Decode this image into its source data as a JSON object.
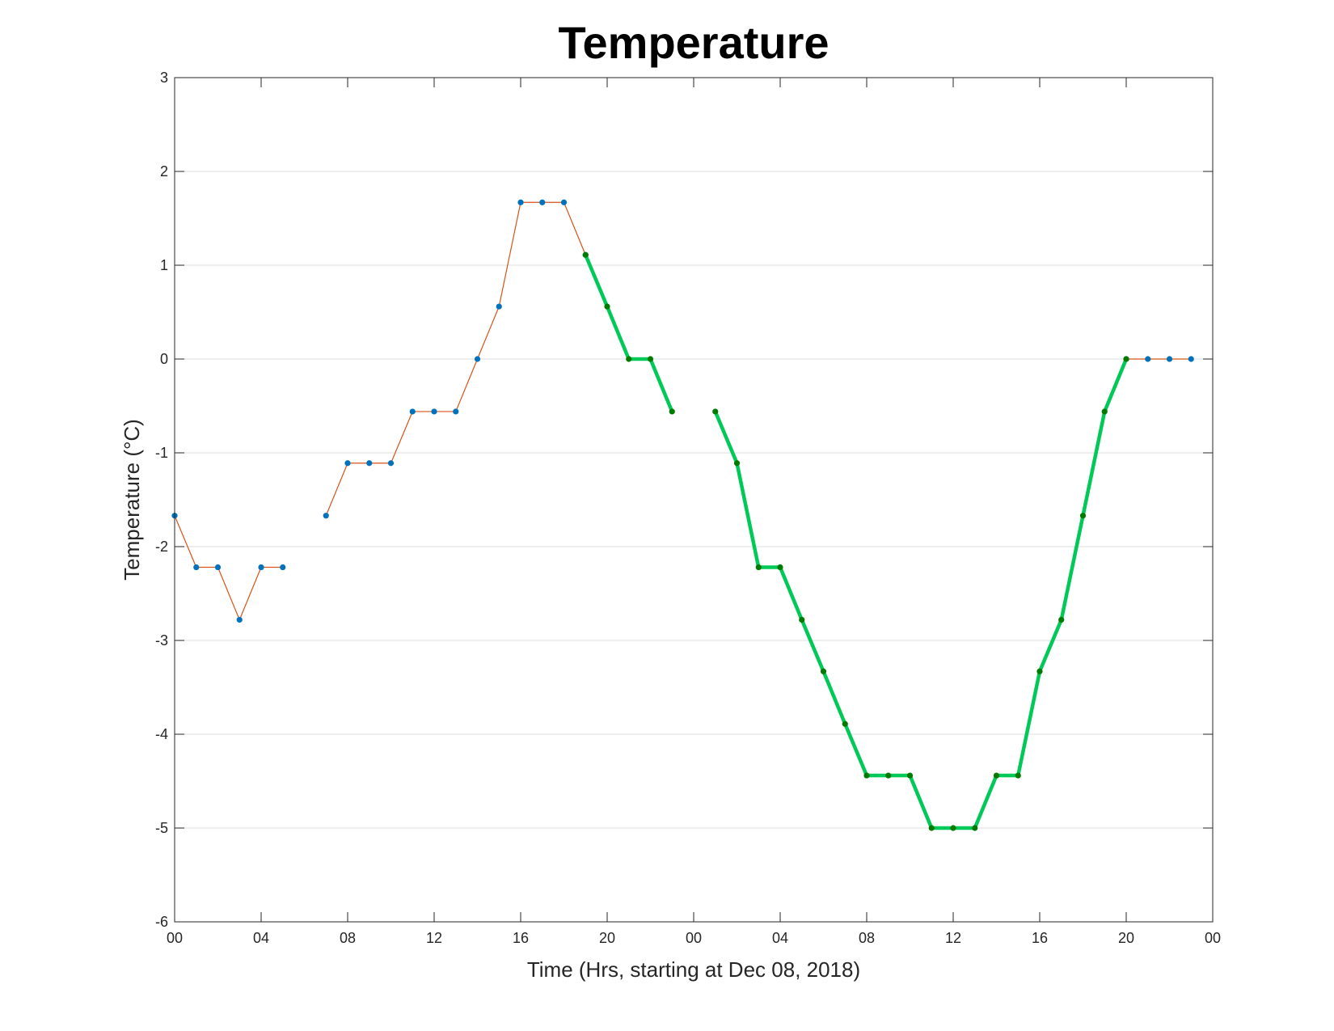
{
  "chart_data": {
    "type": "line",
    "title": "Temperature",
    "xlabel": "Time (Hrs, starting at Dec 08, 2018)",
    "ylabel": "Temperature (°C)",
    "xlim": [
      0,
      48
    ],
    "ylim": [
      -6,
      3
    ],
    "x_ticks": [
      0,
      4,
      8,
      12,
      16,
      20,
      24,
      28,
      32,
      36,
      40,
      44,
      48
    ],
    "x_tick_labels": [
      "00",
      "04",
      "08",
      "12",
      "16",
      "20",
      "00",
      "04",
      "08",
      "12",
      "16",
      "20",
      "00"
    ],
    "y_ticks": [
      -6,
      -5,
      -4,
      -3,
      -2,
      -1,
      0,
      1,
      2,
      3
    ],
    "y_tick_labels": [
      "-6",
      "-5",
      "-4",
      "-3",
      "-2",
      "-1",
      "0",
      "1",
      "2",
      "3"
    ],
    "grid": "horizontal",
    "series": [
      {
        "style": "thin",
        "line_color": "#D95319",
        "marker_color": "#0072BD",
        "points": [
          [
            0,
            -1.67
          ],
          [
            1,
            -2.22
          ],
          [
            2,
            -2.22
          ],
          [
            3,
            -2.78
          ],
          [
            4,
            -2.22
          ],
          [
            5,
            -2.22
          ],
          null,
          [
            7,
            -1.67
          ],
          [
            8,
            -1.11
          ],
          [
            9,
            -1.11
          ],
          [
            10,
            -1.11
          ],
          [
            11,
            -0.56
          ],
          [
            12,
            -0.56
          ],
          [
            13,
            -0.56
          ],
          [
            14,
            0
          ],
          [
            15,
            0.56
          ],
          [
            16,
            1.67
          ],
          [
            17,
            1.67
          ],
          [
            18,
            1.67
          ],
          [
            19,
            1.11
          ]
        ]
      },
      {
        "style": "thin",
        "line_color": "#D95319",
        "marker_color": "#0072BD",
        "points": [
          [
            44,
            0
          ],
          [
            45,
            0
          ],
          [
            46,
            0
          ],
          [
            47,
            0
          ]
        ]
      },
      {
        "style": "thick",
        "line_color": "#00C957",
        "marker_color": "#007A00",
        "points": [
          [
            19,
            1.11
          ],
          [
            20,
            0.56
          ],
          [
            21,
            0
          ],
          [
            22,
            0
          ],
          [
            23,
            -0.56
          ],
          null,
          [
            25,
            -0.56
          ],
          [
            26,
            -1.11
          ],
          [
            27,
            -2.22
          ],
          [
            28,
            -2.22
          ],
          [
            29,
            -2.78
          ],
          [
            30,
            -3.33
          ],
          [
            31,
            -3.89
          ],
          [
            32,
            -4.44
          ],
          [
            33,
            -4.44
          ],
          [
            34,
            -4.44
          ],
          [
            35,
            -5
          ],
          [
            36,
            -5
          ],
          [
            37,
            -5
          ],
          [
            38,
            -4.44
          ],
          [
            39,
            -4.44
          ],
          [
            40,
            -3.33
          ],
          [
            41,
            -2.78
          ],
          [
            42,
            -1.67
          ],
          [
            43,
            -0.56
          ],
          [
            44,
            0
          ]
        ]
      }
    ]
  }
}
